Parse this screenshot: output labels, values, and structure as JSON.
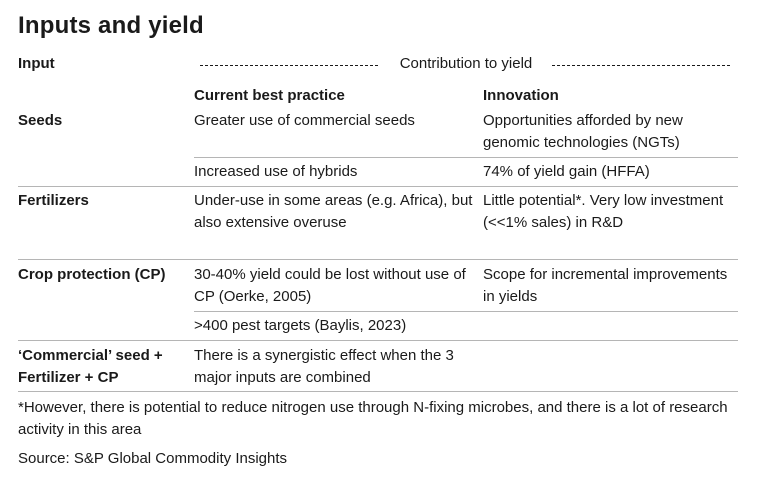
{
  "title": "Inputs and yield",
  "header": {
    "input": "Input",
    "contribution": "Contribution to yield",
    "col_current": "Current best practice",
    "col_innovation": "Innovation"
  },
  "rows": {
    "seeds": {
      "label": "Seeds",
      "current_1": "Greater use of commercial seeds",
      "innovation_1": "Opportunities afforded by new genomic technologies (NGTs)",
      "current_2": "Increased use of hybrids",
      "innovation_2": "74% of yield gain (HFFA)"
    },
    "fertilizers": {
      "label": "Fertilizers",
      "current": "Under-use in some areas (e.g. Africa), but also extensive overuse",
      "innovation": "Little potential*.  Very low investment (<<1% sales) in R&D"
    },
    "crop_protection": {
      "label": "Crop protection (CP)",
      "current_1": "30-40% yield could be lost without use of CP (Oerke, 2005)",
      "innovation_1": "Scope for incremental improvements in yields",
      "current_2": ">400 pest targets (Baylis, 2023)"
    },
    "combined": {
      "label": "‘Commercial’ seed + Fertilizer + CP",
      "current": "There is a synergistic effect when the 3 major inputs are combined"
    }
  },
  "footnote": "*However, there is potential to reduce nitrogen use through N-fixing microbes, and there is a lot of research activity in this area",
  "source": "Source: S&P Global Commodity Insights"
}
